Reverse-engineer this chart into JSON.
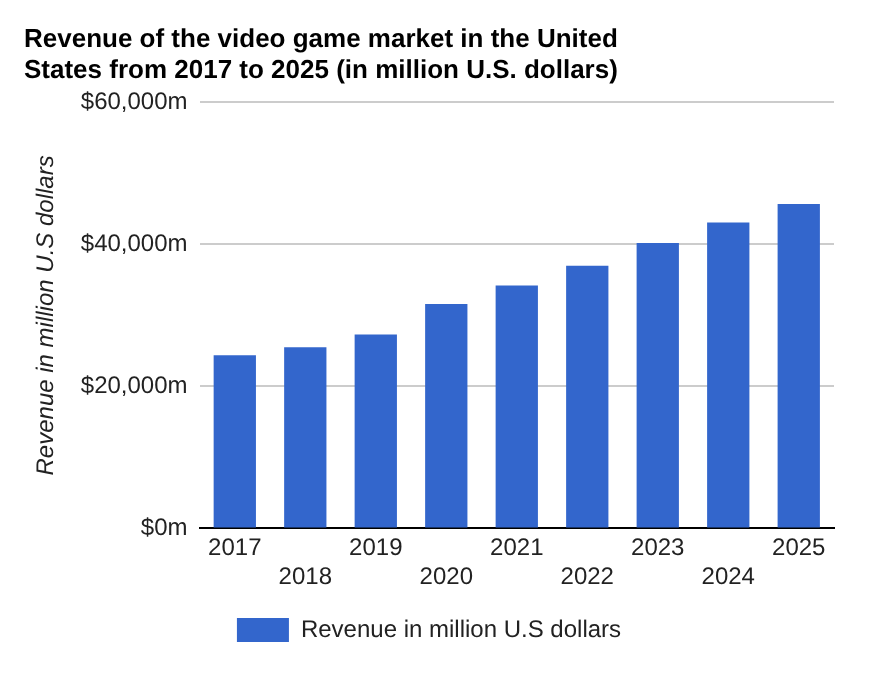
{
  "chart_data": {
    "type": "bar",
    "title": "Revenue of the video game market in the United States from 2017 to 2025 (in million U.S. dollars)",
    "ylabel": "Revenue in million U.S dollars",
    "categories": [
      "2017",
      "2018",
      "2019",
      "2020",
      "2021",
      "2022",
      "2023",
      "2024",
      "2025"
    ],
    "series": [
      {
        "name": "Revenue in million U.S dollars",
        "color": "#3366cc",
        "values": [
          24400,
          25500,
          27300,
          31600,
          34200,
          37000,
          40200,
          43100,
          45700
        ]
      }
    ],
    "ylim": [
      0,
      60000
    ],
    "yticks": [
      {
        "value": 0,
        "label": "$0m"
      },
      {
        "value": 20000,
        "label": "$20,000m"
      },
      {
        "value": 40000,
        "label": "$40,000m"
      },
      {
        "value": 60000,
        "label": "$60,000m"
      }
    ],
    "grid": "y",
    "legend": "bottom"
  }
}
